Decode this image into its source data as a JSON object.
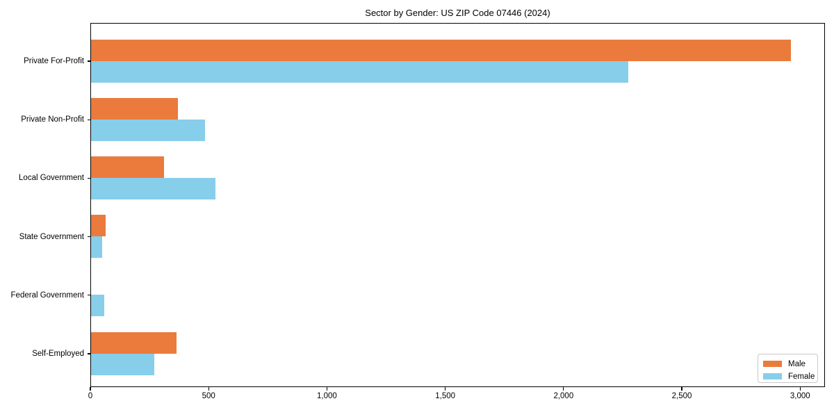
{
  "chart_data": {
    "type": "bar",
    "orientation": "horizontal",
    "title": "Sector by Gender: US ZIP Code 07446 (2024)",
    "categories": [
      "Private For-Profit",
      "Private Non-Profit",
      "Local Government",
      "State Government",
      "Federal Government",
      "Self-Employed"
    ],
    "series": [
      {
        "name": "Male",
        "color": "#ea7b3c",
        "values": [
          2957,
          368,
          309,
          61,
          0,
          360
        ]
      },
      {
        "name": "Female",
        "color": "#87ceeb",
        "values": [
          2271,
          483,
          525,
          46,
          55,
          266
        ]
      }
    ],
    "xlabel": "",
    "ylabel": "",
    "xlim": [
      0,
      3105
    ],
    "xticks": [
      0,
      500,
      1000,
      1500,
      2000,
      2500,
      3000
    ],
    "xtick_labels": [
      "0",
      "500",
      "1,000",
      "1,500",
      "2,000",
      "2,500",
      "3,000"
    ],
    "grid": false,
    "legend_position": "lower right",
    "colors": {
      "background": "#ffffff",
      "axis": "#000000",
      "text": "#000000",
      "legend_border": "#c9c9c9"
    }
  }
}
